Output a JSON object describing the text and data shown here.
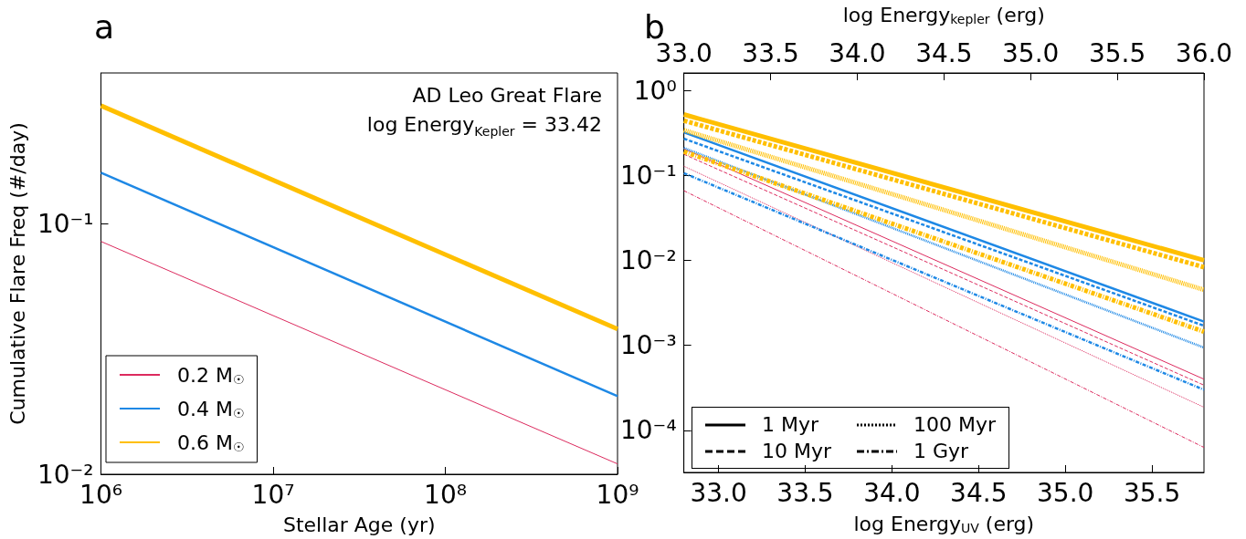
{
  "chart_data": [
    {
      "type": "line",
      "title": "a",
      "xlabel": "Stellar Age (yr)",
      "ylabel": "Cumulative Flare Freq (#/day)",
      "annotations": [
        "AD Leo Great Flare",
        "log Energy$_{Kepler}$ = 33.42"
      ],
      "log": "xy",
      "legend": "bottom left",
      "xlim": [
        1000000,
        1000000000
      ],
      "xticks": [
        {
          "value": 1000000,
          "label": "10⁶"
        },
        {
          "value": 10000000,
          "label": "10⁷"
        },
        {
          "value": 100000000,
          "label": "10⁸"
        },
        {
          "value": 1000000000,
          "label": "10⁹"
        }
      ],
      "ylim": [
        0.01,
        0.4
      ],
      "yticks": [
        {
          "value": 0.01,
          "label": "10⁻²"
        },
        {
          "value": 0.1,
          "label": "10⁻¹"
        }
      ],
      "series": [
        {
          "name": "0.2 M$_{☉}$",
          "color": "#dc2a5e",
          "x": [
            1000000,
            1000000000
          ],
          "values": [
            0.085,
            0.011
          ]
        },
        {
          "name": "0.4 M$_{☉}$",
          "color": "#1e88e5",
          "x": [
            1000000,
            1000000000
          ],
          "values": [
            0.16,
            0.0205
          ]
        },
        {
          "name": "0.6 M$_{☉}$",
          "color": "#ffbf00",
          "x": [
            1000000,
            1000000000
          ],
          "values": [
            0.296,
            0.038
          ]
        }
      ]
    },
    {
      "type": "line",
      "title": "b",
      "xlabel": "log Energy$_{UV}$ (erg)",
      "x2label": "log Energy$_{kepler}$ (erg)",
      "annotations": [
        "1 Myr",
        "10 Myr",
        "100 Myr",
        "1 Gyr"
      ],
      "log": "y",
      "legend": "bottom left",
      "xlim": [
        32.8,
        35.8
      ],
      "xticks": [
        {
          "value": 33,
          "label": "33.0"
        },
        {
          "value": 33.5,
          "label": "33.5"
        },
        {
          "value": 34,
          "label": "34.0"
        },
        {
          "value": 34.5,
          "label": "34.5"
        },
        {
          "value": 35,
          "label": "35.0"
        },
        {
          "value": 35.5,
          "label": "35.5"
        }
      ],
      "x2lim": [
        33,
        36
      ],
      "x2ticks": [
        {
          "value": 33,
          "label": "33.0"
        },
        {
          "value": 33.5,
          "label": "33.5"
        },
        {
          "value": 34,
          "label": "34.0"
        },
        {
          "value": 34.5,
          "label": "34.5"
        },
        {
          "value": 35,
          "label": "35.0"
        },
        {
          "value": 35.5,
          "label": "35.5"
        },
        {
          "value": 36,
          "label": "36.0"
        }
      ],
      "ylim": [
        3.2e-05,
        1.6
      ],
      "yticks": [
        {
          "value": 0.0001,
          "label": "10⁻⁴"
        },
        {
          "value": 0.001,
          "label": "10⁻³"
        },
        {
          "value": 0.01,
          "label": "10⁻²"
        },
        {
          "value": 0.1,
          "label": "10⁻¹"
        },
        {
          "value": 1,
          "label": "10⁰"
        }
      ],
      "series": [
        {
          "line_style": "solid",
          "color": "#dc2a5e",
          "x": [
            32.8,
            35.8
          ],
          "values": [
            0.205,
            0.0004
          ]
        },
        {
          "line_style": "solid",
          "color": "#1e88e5",
          "x": [
            32.8,
            35.8
          ],
          "values": [
            0.32,
            0.0019
          ]
        },
        {
          "line_style": "solid",
          "color": "#ffbf00",
          "x": [
            32.8,
            35.8
          ],
          "values": [
            0.52,
            0.01
          ]
        },
        {
          "line_style": "dashed",
          "color": "#dc2a5e",
          "x": [
            32.8,
            35.8
          ],
          "values": [
            0.177,
            0.00034
          ]
        },
        {
          "line_style": "dashed",
          "color": "#1e88e5",
          "x": [
            32.8,
            35.8
          ],
          "values": [
            0.27,
            0.0017
          ]
        },
        {
          "line_style": "dashed",
          "color": "#ffbf00",
          "x": [
            32.8,
            35.8
          ],
          "values": [
            0.44,
            0.0083
          ]
        },
        {
          "line_style": "dotted",
          "color": "#dc2a5e",
          "x": [
            32.8,
            35.8
          ],
          "values": [
            0.128,
            0.000187
          ]
        },
        {
          "line_style": "dotted",
          "color": "#1e88e5",
          "x": [
            32.8,
            35.8
          ],
          "values": [
            0.21,
            0.00094
          ]
        },
        {
          "line_style": "dotted",
          "color": "#ffbf00",
          "x": [
            32.8,
            35.8
          ],
          "values": [
            0.34,
            0.0045
          ]
        },
        {
          "line_style": "dashdot",
          "color": "#dc2a5e",
          "x": [
            32.8,
            35.8
          ],
          "values": [
            0.066,
            6.3e-05
          ]
        },
        {
          "line_style": "dashdot",
          "color": "#1e88e5",
          "x": [
            32.8,
            35.8
          ],
          "values": [
            0.106,
            0.0003
          ]
        },
        {
          "line_style": "dashdot",
          "color": "#ffbf00",
          "x": [
            32.8,
            35.8
          ],
          "values": [
            0.19,
            0.00145
          ]
        }
      ]
    }
  ]
}
